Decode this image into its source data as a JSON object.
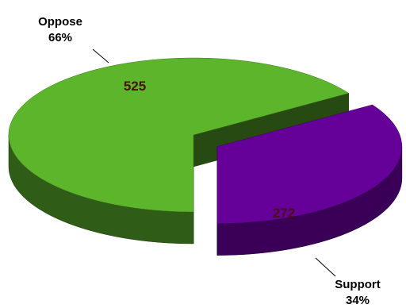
{
  "chart_data": {
    "type": "pie",
    "style": "3d-exploded",
    "categories": [
      "Oppose",
      "Support"
    ],
    "values": [
      525,
      272
    ],
    "percent_labels": [
      "66%",
      "34%"
    ],
    "colors": {
      "Oppose": {
        "top": "#5cb52a",
        "side": "#2f5c16",
        "side_dark": "#264a12"
      },
      "Support": {
        "top": "#650099",
        "side": "#3a0058",
        "side_dark": "#2c0044"
      }
    },
    "title": "",
    "legend": "none"
  }
}
